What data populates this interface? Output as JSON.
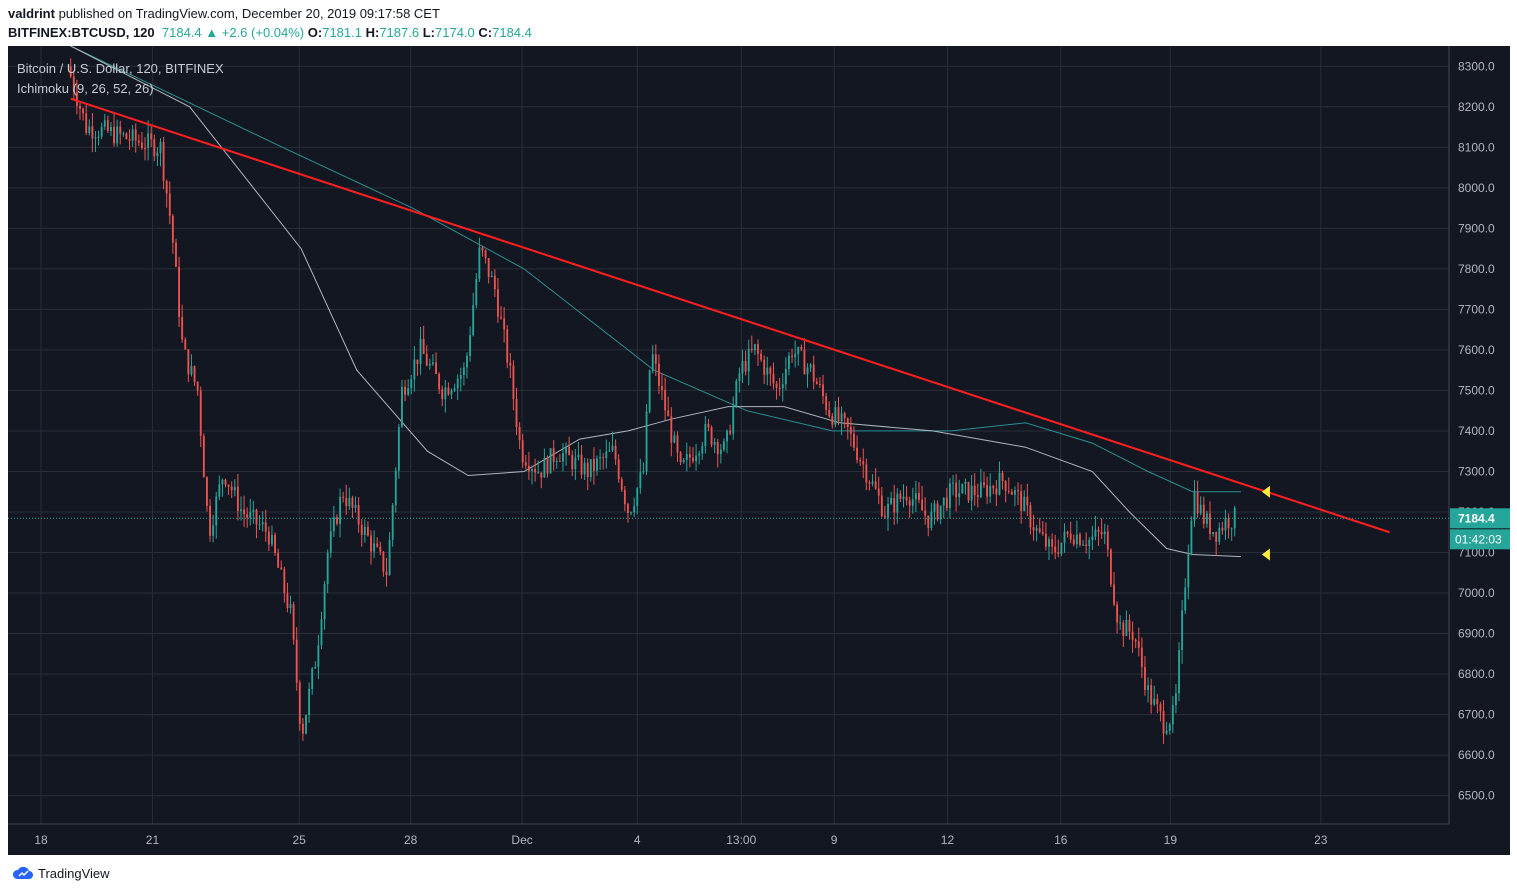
{
  "header": {
    "author": "valdrint",
    "published_text": " published on TradingView.com, December 20, 2019 09:17:58 CET",
    "symbol_label": "BITFINEX:BTCUSD, 120",
    "last": "7184.4",
    "change": "▲ +2.6 (+0.04%)",
    "o_label": "O:",
    "o": "7181.1",
    "h_label": "H:",
    "h": "7187.6",
    "l_label": "L:",
    "l": "7174.0",
    "c_label": "C:",
    "c": "7184.4"
  },
  "legend": {
    "series_title": "Bitcoin / U.S. Dollar, 120, BITFINEX",
    "indicator": "Ichimoku (9, 26, 52, 26)"
  },
  "footer": {
    "brand": "TradingView"
  },
  "colors": {
    "background": "#131722",
    "up": "#26a69a",
    "down": "#ef5350",
    "trendline": "#ff1f1f",
    "ma_teal": "#2a8f92",
    "ma_gray": "#b2b5be",
    "marker": "#ffeb3b",
    "price_tag": "#26a69a",
    "grid": "#2a2e39"
  },
  "chart_data": {
    "type": "candlestick",
    "title": "Bitcoin / U.S. Dollar, 120, BITFINEX",
    "ylim": [
      6430,
      8350
    ],
    "y_ticks": [
      "8300.0",
      "8200.0",
      "8100.0",
      "8000.0",
      "7900.0",
      "7800.0",
      "7700.0",
      "7600.0",
      "7500.0",
      "7400.0",
      "7300.0",
      "7200.0",
      "7100.0",
      "7000.0",
      "6900.0",
      "6800.0",
      "6700.0",
      "6600.0",
      "6500.0"
    ],
    "x_ticks": [
      "18",
      "21",
      "25",
      "28",
      "Dec",
      "4",
      "13:00",
      "9",
      "12",
      "16",
      "19",
      "23"
    ],
    "last_price": "7184.4",
    "countdown": "01:42:03",
    "grid": true,
    "price_path": [
      [
        "18.8",
        8300
      ],
      [
        "19.3",
        8150
      ],
      [
        "19.8",
        8140
      ],
      [
        "20.5",
        8120
      ],
      [
        "21.3",
        8100
      ],
      [
        "21.6",
        7900
      ],
      [
        "21.9",
        7600
      ],
      [
        "22.3",
        7500
      ],
      [
        "22.6",
        7150
      ],
      [
        "23.0",
        7300
      ],
      [
        "23.5",
        7200
      ],
      [
        "24.2",
        7150
      ],
      [
        "24.8",
        6950
      ],
      [
        "25.1",
        6650
      ],
      [
        "25.5",
        6850
      ],
      [
        "25.8",
        7100
      ],
      [
        "26.2",
        7250
      ],
      [
        "26.8",
        7150
      ],
      [
        "27.4",
        7050
      ],
      [
        "27.8",
        7500
      ],
      [
        "28.3",
        7600
      ],
      [
        "28.9",
        7500
      ],
      [
        "29.5",
        7550
      ],
      [
        "29.9",
        7850
      ],
      [
        "30.3",
        7750
      ],
      [
        "30.7",
        7550
      ],
      [
        "Dec 1.0",
        7350
      ],
      [
        "Dec 1.5",
        7300
      ],
      [
        "Dec 2.0",
        7350
      ],
      [
        "Dec 2.8",
        7300
      ],
      [
        "Dec 3.5",
        7350
      ],
      [
        "Dec 3.9",
        7200
      ],
      [
        "Dec 4.3",
        7300
      ],
      [
        "Dec 4.5",
        7600
      ],
      [
        "Dec 4.9",
        7450
      ],
      [
        "Dec 5.3",
        7300
      ],
      [
        "Dec 6.0",
        7400
      ],
      [
        "Dec 6.5",
        7350
      ],
      [
        "Dec 6.9",
        7550
      ],
      [
        "Dec 7.3",
        7600
      ],
      [
        "Dec 7.9",
        7500
      ],
      [
        "Dec 8.3",
        7600
      ],
      [
        "Dec 8.8",
        7550
      ],
      [
        "Dec 9.3",
        7450
      ],
      [
        "Dec 9.8",
        7400
      ],
      [
        "Dec 10.3",
        7300
      ],
      [
        "Dec 10.8",
        7200
      ],
      [
        "Dec 11.4",
        7250
      ],
      [
        "Dec 12.0",
        7180
      ],
      [
        "Dec 12.6",
        7250
      ],
      [
        "Dec 13.4",
        7250
      ],
      [
        "Dec 14.0",
        7280
      ],
      [
        "Dec 14.5",
        7220
      ],
      [
        "Dec 14.9",
        7150
      ],
      [
        "Dec 15.3",
        7100
      ],
      [
        "Dec 15.8",
        7150
      ],
      [
        "Dec 16.3",
        7130
      ],
      [
        "Dec 16.7",
        7150
      ],
      [
        "Dec 17.1",
        6920
      ],
      [
        "Dec 17.5",
        6900
      ],
      [
        "Dec 17.9",
        6750
      ],
      [
        "Dec 18.3",
        6680
      ],
      [
        "Dec 18.6",
        6700
      ],
      [
        "Dec 18.9",
        7050
      ],
      [
        "Dec 19.1",
        7250
      ],
      [
        "Dec 19.4",
        7180
      ],
      [
        "Dec 19.7",
        7150
      ],
      [
        "Dec 20.0",
        7180
      ],
      [
        "Dec 20.2",
        7184
      ]
    ],
    "trendline": {
      "from": [
        "18.8",
        8220
      ],
      "to": [
        "Dec 24.3",
        7150
      ]
    },
    "lines": [
      {
        "name": "teal-ma",
        "color": "#2a8f92",
        "points": [
          [
            "18.8",
            8350
          ],
          [
            "24.5",
            8100
          ],
          [
            "28.0",
            7950
          ],
          [
            "Dec 1.0",
            7800
          ],
          [
            "Dec 4.5",
            7550
          ],
          [
            "Dec 7.0",
            7450
          ],
          [
            "Dec 9.3",
            7400
          ],
          [
            "Dec 12.5",
            7400
          ],
          [
            "Dec 14.5",
            7420
          ],
          [
            "Dec 16.3",
            7370
          ],
          [
            "Dec 17.8",
            7300
          ],
          [
            "Dec 19.0",
            7250
          ],
          [
            "Dec 20.3",
            7250
          ]
        ]
      },
      {
        "name": "gray-ma",
        "color": "#b2b5be",
        "points": [
          [
            "18.8",
            8350
          ],
          [
            "22.0",
            8200
          ],
          [
            "25.0",
            7850
          ],
          [
            "26.5",
            7550
          ],
          [
            "28.4",
            7350
          ],
          [
            "29.5",
            7290
          ],
          [
            "Dec 1.0",
            7300
          ],
          [
            "Dec 2.5",
            7380
          ],
          [
            "Dec 3.8",
            7400
          ],
          [
            "Dec 5.0",
            7430
          ],
          [
            "Dec 6.5",
            7460
          ],
          [
            "Dec 8.0",
            7460
          ],
          [
            "Dec 9.5",
            7420
          ],
          [
            "Dec 12.0",
            7400
          ],
          [
            "Dec 14.5",
            7360
          ],
          [
            "Dec 16.3",
            7300
          ],
          [
            "Dec 17.3",
            7200
          ],
          [
            "Dec 18.3",
            7110
          ],
          [
            "Dec 19.0",
            7095
          ],
          [
            "Dec 20.3",
            7090
          ]
        ]
      }
    ],
    "markers": [
      {
        "shape": "left-arrow",
        "at": [
          "Dec 21.0",
          7250
        ]
      },
      {
        "shape": "left-arrow",
        "at": [
          "Dec 21.0",
          7095
        ]
      }
    ]
  }
}
